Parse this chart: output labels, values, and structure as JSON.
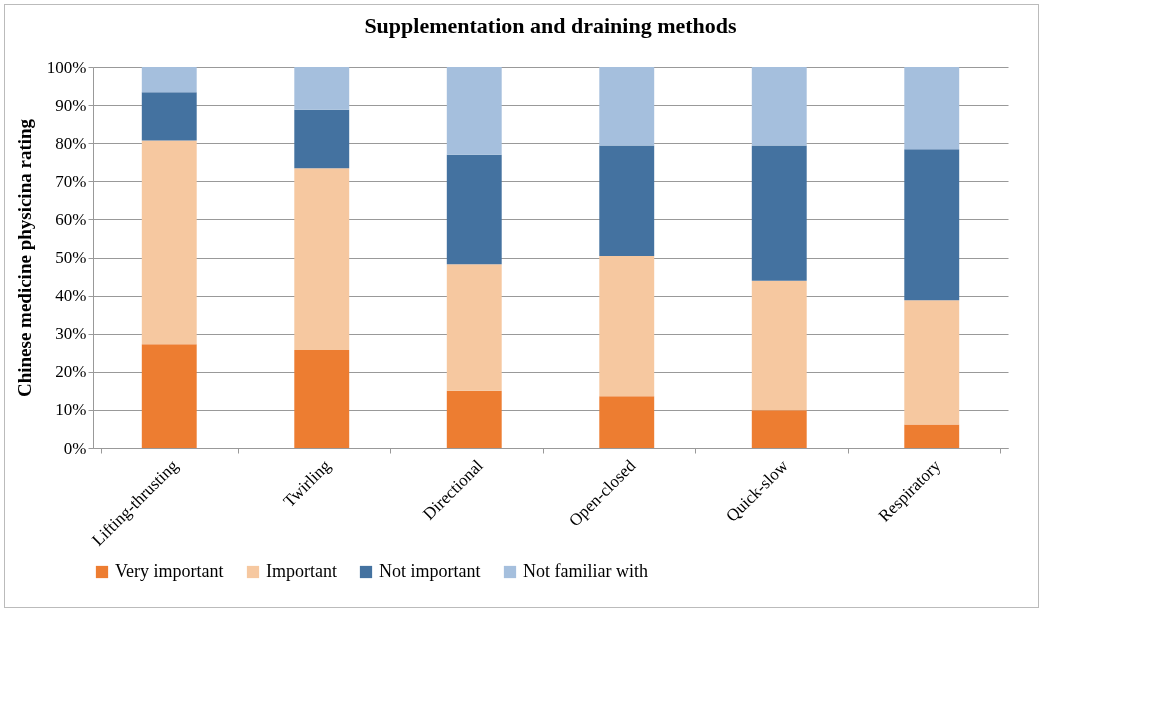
{
  "chart_data": {
    "type": "bar",
    "stacked": true,
    "title": "Supplementation and draining methods",
    "ylabel": "Chinese medicine physicina rating",
    "categories": [
      "Lifting-thrusting",
      "Twirling",
      "Directional",
      "Open-closed",
      "Quick-slow",
      "Respiratory"
    ],
    "series": [
      {
        "name": "Very important",
        "color": "#ed7d31",
        "values": [
          27.2,
          25.7,
          15.0,
          13.6,
          9.9,
          6.2
        ]
      },
      {
        "name": "Important",
        "color": "#f6c8a0",
        "values": [
          53.5,
          47.7,
          33.2,
          36.8,
          34.0,
          32.6
        ]
      },
      {
        "name": "Not important",
        "color": "#4472a0",
        "values": [
          12.7,
          15.4,
          28.8,
          29.0,
          35.5,
          39.6
        ]
      },
      {
        "name": "Not familiar with",
        "color": "#a5bfdd",
        "values": [
          6.6,
          11.2,
          23.0,
          20.6,
          20.6,
          21.6
        ]
      }
    ],
    "ylim": [
      0,
      100
    ],
    "yticks": [
      {
        "value": 0,
        "label": "0%"
      },
      {
        "value": 10,
        "label": "10%"
      },
      {
        "value": 20,
        "label": "20%"
      },
      {
        "value": 30,
        "label": "30%"
      },
      {
        "value": 40,
        "label": "40%"
      },
      {
        "value": 50,
        "label": "50%"
      },
      {
        "value": 60,
        "label": "60%"
      },
      {
        "value": 70,
        "label": "70%"
      },
      {
        "value": 80,
        "label": "80%"
      },
      {
        "value": 90,
        "label": "90%"
      },
      {
        "value": 100,
        "label": "100%"
      }
    ],
    "grid": "y",
    "legend": "bottom"
  }
}
